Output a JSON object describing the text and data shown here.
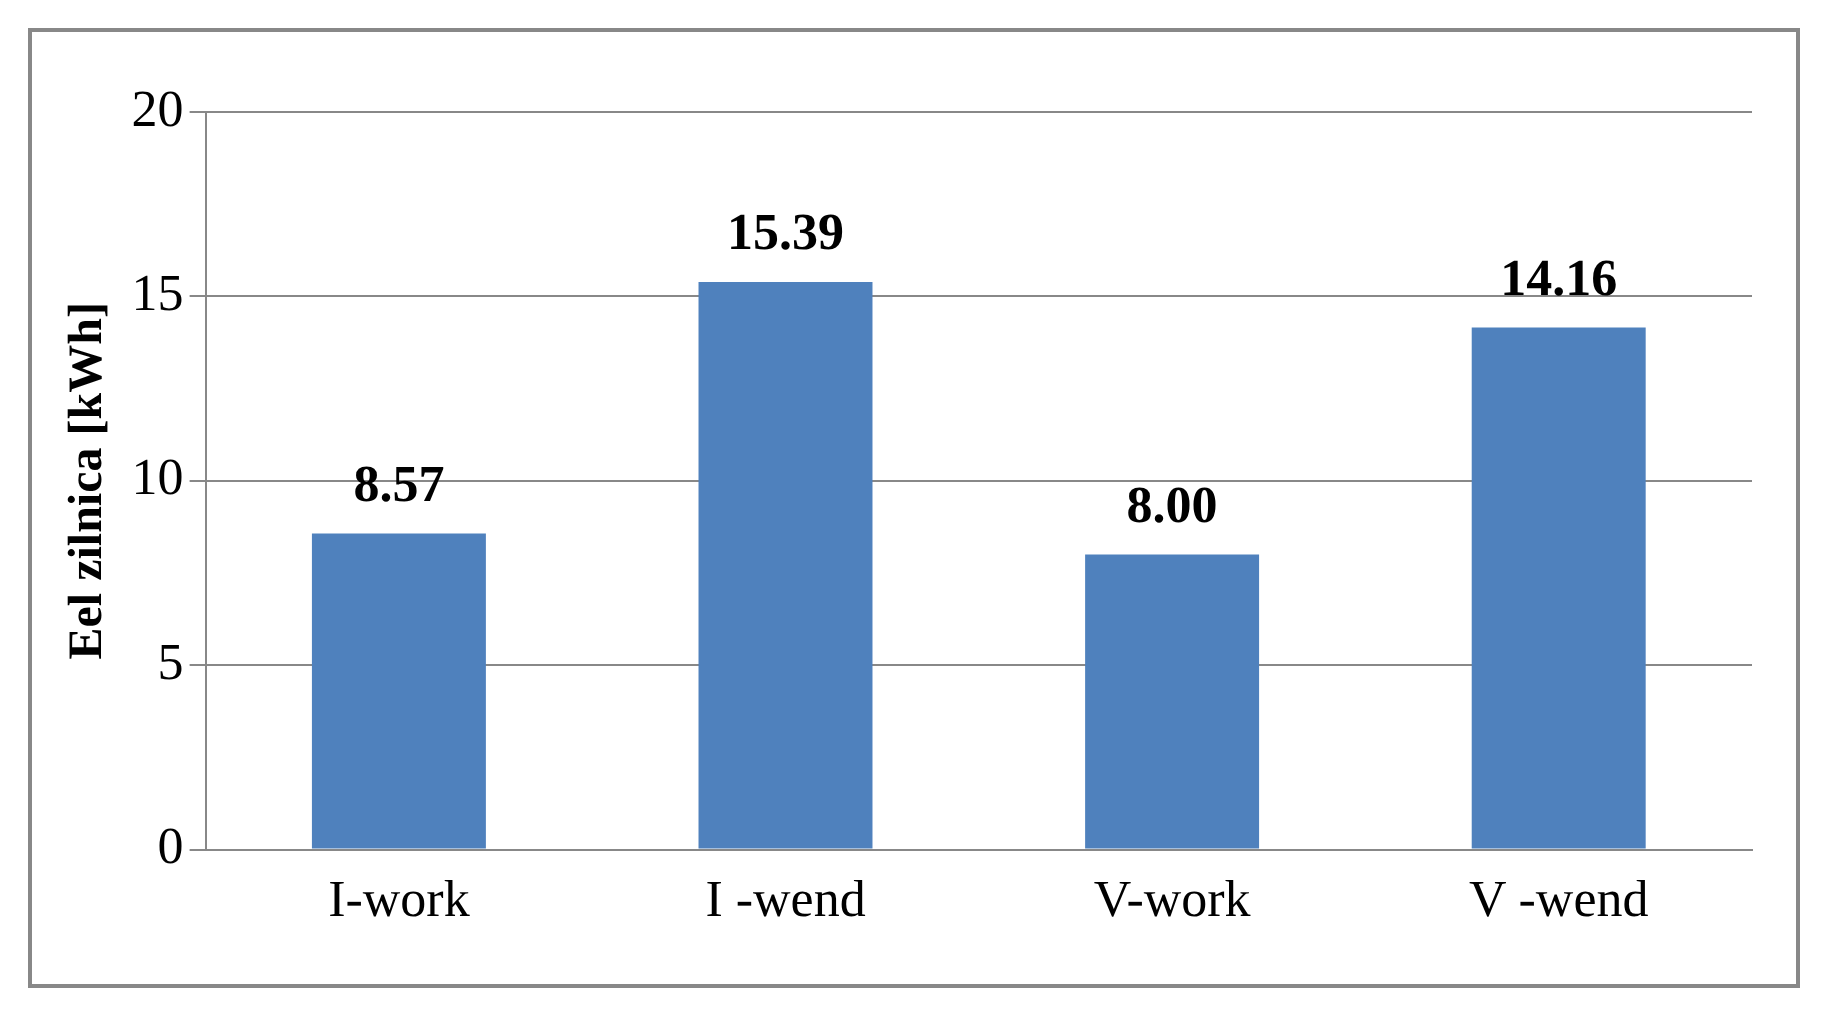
{
  "chart_data": {
    "type": "bar",
    "ylabel": "Eel zilnica [kWh]",
    "categories": [
      "I-work",
      "I -wend",
      "V-work",
      "V -wend"
    ],
    "values": [
      8.57,
      15.39,
      8.0,
      14.16
    ],
    "value_labels": [
      "8.57",
      "15.39",
      "8.00",
      "14.16"
    ],
    "color": "#4f81bd",
    "ylim": [
      0,
      20
    ],
    "yticks": [
      0,
      5,
      10,
      15,
      20
    ],
    "grid": "y"
  }
}
